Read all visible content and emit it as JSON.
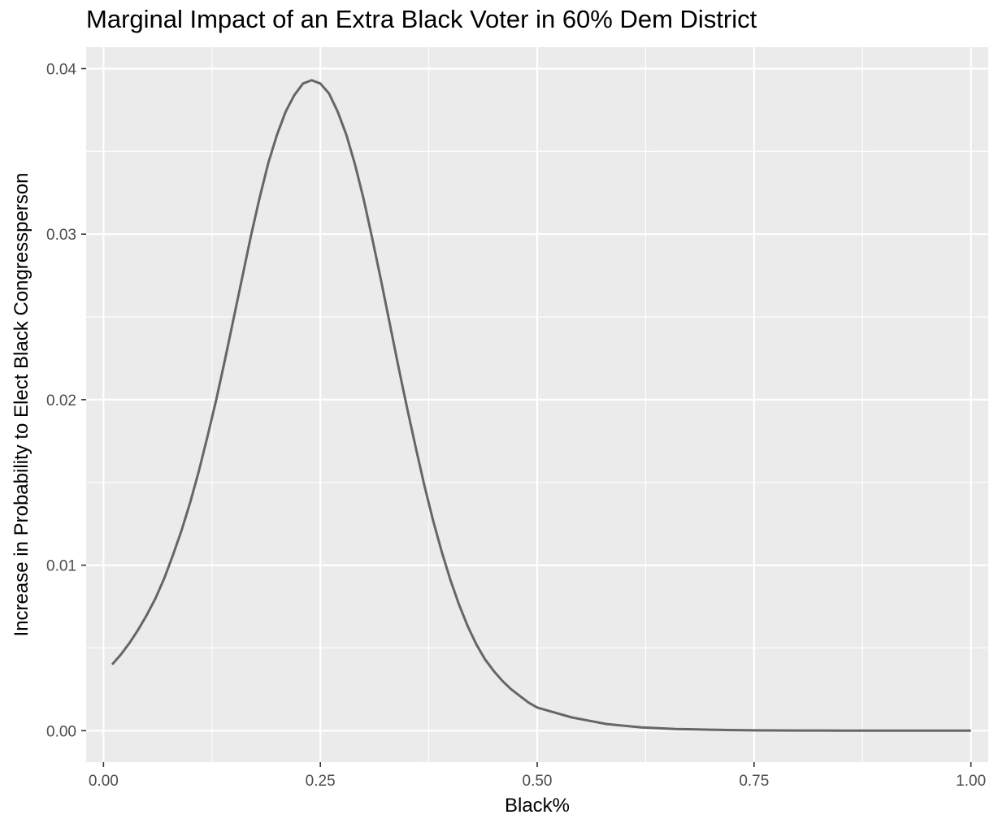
{
  "chart_data": {
    "type": "line",
    "title": "Marginal Impact of an Extra Black Voter in 60% Dem District",
    "xlabel": "Black%",
    "ylabel": "Increase in Probability to Elect Black Congressperson",
    "xlim": [
      -0.02,
      1.02
    ],
    "ylim": [
      -0.0019,
      0.0413
    ],
    "x_ticks": [
      0.0,
      0.25,
      0.5,
      0.75,
      1.0
    ],
    "x_tick_labels": [
      "0.00",
      "0.25",
      "0.50",
      "0.75",
      "1.00"
    ],
    "y_ticks": [
      0.0,
      0.01,
      0.02,
      0.03,
      0.04
    ],
    "y_tick_labels": [
      "0.00",
      "0.01",
      "0.02",
      "0.03",
      "0.04"
    ],
    "grid": true,
    "background": "#ebebeb",
    "grid_color": "#ffffff",
    "line_color": "#666666",
    "series": [
      {
        "x": [
          0.01,
          0.02,
          0.03,
          0.04,
          0.05,
          0.06,
          0.07,
          0.08,
          0.09,
          0.1,
          0.11,
          0.12,
          0.13,
          0.14,
          0.15,
          0.16,
          0.17,
          0.18,
          0.19,
          0.2,
          0.21,
          0.22,
          0.23,
          0.24,
          0.25,
          0.26,
          0.27,
          0.28,
          0.29,
          0.3,
          0.31,
          0.32,
          0.33,
          0.34,
          0.35,
          0.36,
          0.37,
          0.38,
          0.39,
          0.4,
          0.41,
          0.42,
          0.43,
          0.44,
          0.45,
          0.46,
          0.47,
          0.48,
          0.49,
          0.5,
          0.52,
          0.54,
          0.56,
          0.58,
          0.6,
          0.62,
          0.64,
          0.66,
          0.68,
          0.7,
          0.72,
          0.75,
          0.8,
          0.85,
          0.9,
          0.95,
          1.0
        ],
        "y": [
          0.004,
          0.0046,
          0.0053,
          0.0061,
          0.007,
          0.008,
          0.0092,
          0.0106,
          0.0121,
          0.0138,
          0.0157,
          0.0178,
          0.02,
          0.0224,
          0.0249,
          0.0274,
          0.0299,
          0.0322,
          0.0343,
          0.036,
          0.0374,
          0.0384,
          0.0391,
          0.0393,
          0.0391,
          0.0385,
          0.0374,
          0.036,
          0.0342,
          0.0321,
          0.0297,
          0.0272,
          0.0246,
          0.022,
          0.0195,
          0.0171,
          0.0148,
          0.0127,
          0.0108,
          0.0091,
          0.0076,
          0.0063,
          0.0052,
          0.0043,
          0.0036,
          0.003,
          0.0025,
          0.0021,
          0.0017,
          0.0014,
          0.0011,
          0.0008,
          0.0006,
          0.0004,
          0.0003,
          0.0002,
          0.00015,
          0.0001,
          8e-05,
          6e-05,
          4e-05,
          2e-05,
          1e-05,
          5e-06,
          0.0,
          0.0,
          0.0
        ]
      }
    ]
  }
}
